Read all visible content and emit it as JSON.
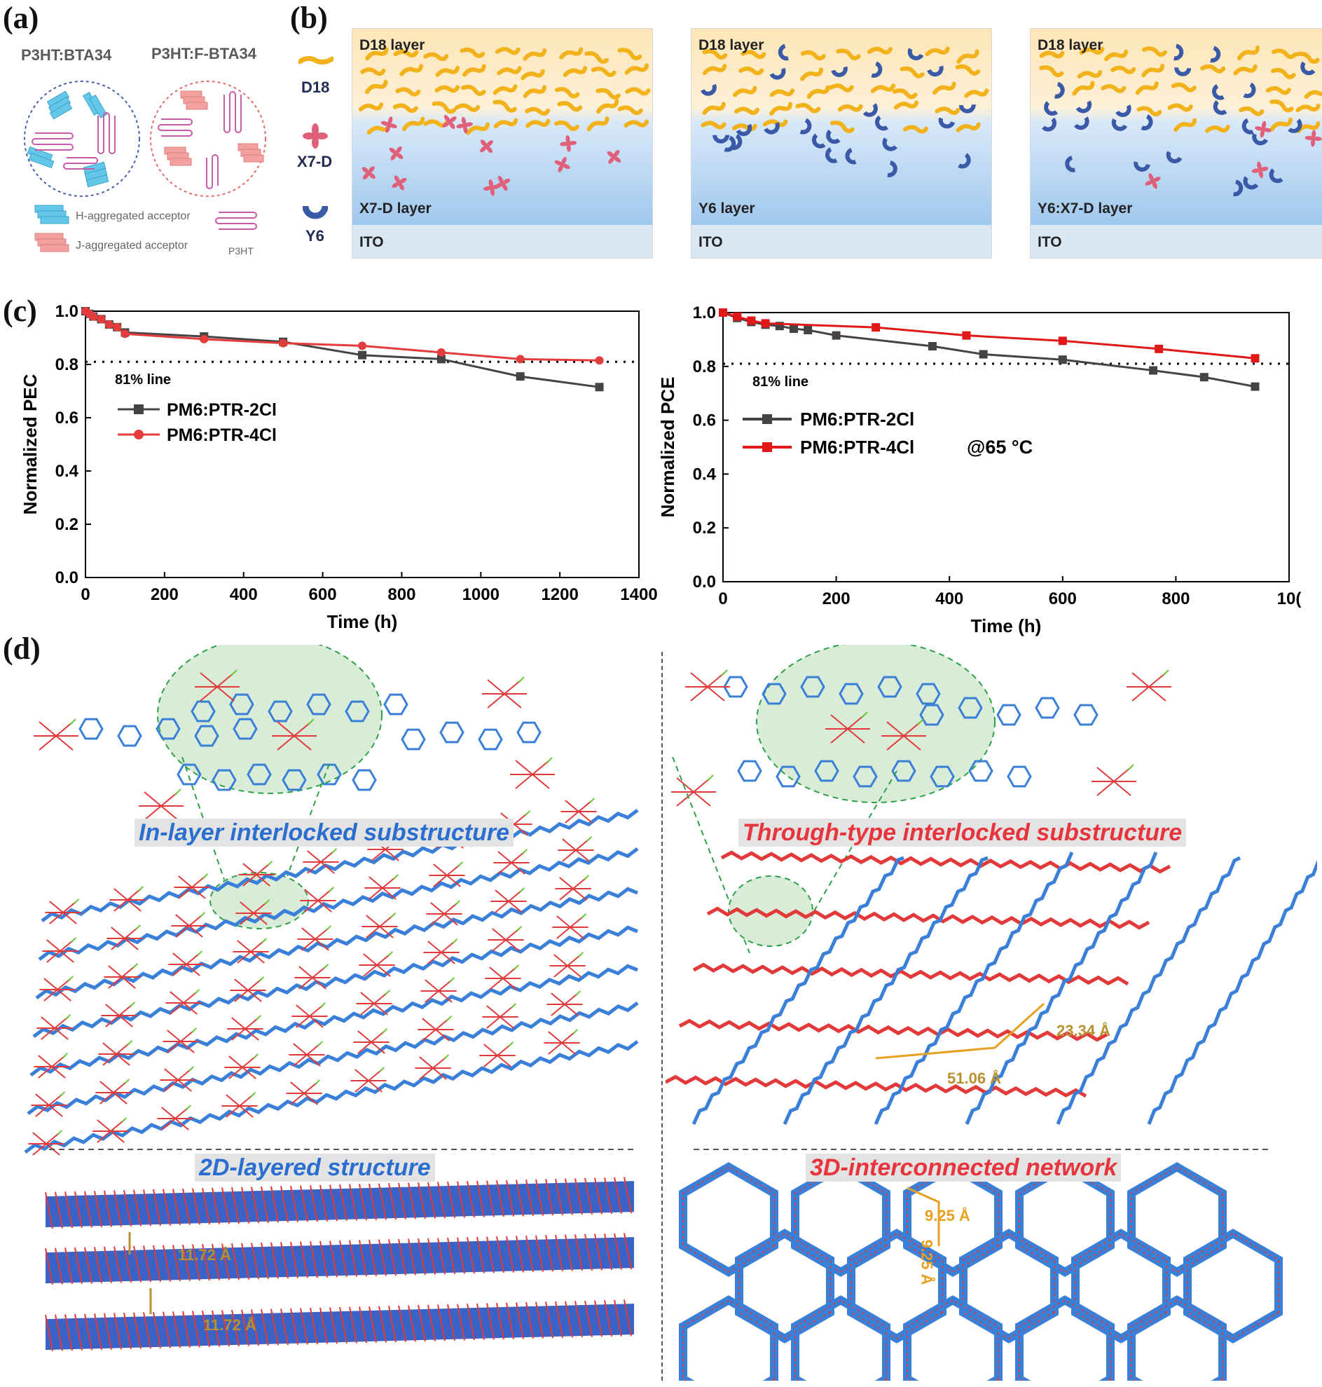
{
  "labels": {
    "a": "(a)",
    "b": "(b)",
    "c": "(c)",
    "d": "(d)"
  },
  "panel_a": {
    "title_left": "P3HT:BTA34",
    "title_right": "P3HT:F-BTA34",
    "legend_h": "H-aggregated acceptor",
    "legend_j": "J-aggregated acceptor",
    "legend_p": "P3HT"
  },
  "panel_b": {
    "legend": [
      "D18",
      "X7-D",
      "Y6"
    ],
    "panels": [
      {
        "top": "D18 layer",
        "bottom": "X7-D layer",
        "ito": "ITO"
      },
      {
        "top": "D18 layer",
        "bottom": "Y6 layer",
        "ito": "ITO"
      },
      {
        "top": "D18 layer",
        "bottom": "Y6:X7-D layer",
        "ito": "ITO"
      }
    ],
    "colors": {
      "d18": "#f2b21c",
      "x7d": "#e0607a",
      "y6": "#3a5aa8",
      "bg_top": "#fde9bd",
      "bg_bottom": "#a9cdef",
      "ito": "#d8e8f5"
    }
  },
  "chart_data": [
    {
      "type": "line",
      "xlabel": "Time (h)",
      "ylabel": "Normalized PEC",
      "xlim": [
        0,
        1400
      ],
      "ylim": [
        0,
        1.0
      ],
      "xticks": [
        "0",
        "200",
        "400",
        "600",
        "800",
        "1000",
        "1200",
        "1400"
      ],
      "yticks": [
        "0.0",
        "0.2",
        "0.4",
        "0.6",
        "0.8",
        "1.0"
      ],
      "reference_line": {
        "y": 0.81,
        "label": "81% line"
      },
      "series": [
        {
          "name": "PM6:PTR-2Cl",
          "color": "#444444",
          "marker": "square",
          "x": [
            0,
            10,
            20,
            40,
            60,
            80,
            100,
            300,
            500,
            700,
            900,
            1100,
            1300
          ],
          "y": [
            1.0,
            0.99,
            0.98,
            0.97,
            0.95,
            0.94,
            0.92,
            0.905,
            0.885,
            0.835,
            0.82,
            0.755,
            0.715
          ]
        },
        {
          "name": "PM6:PTR-4Cl",
          "color": "#e23c3c",
          "marker": "circle",
          "x": [
            0,
            10,
            20,
            40,
            60,
            80,
            100,
            300,
            500,
            700,
            900,
            1100,
            1300
          ],
          "y": [
            1.0,
            0.99,
            0.98,
            0.97,
            0.95,
            0.94,
            0.915,
            0.895,
            0.88,
            0.87,
            0.845,
            0.82,
            0.815
          ]
        }
      ]
    },
    {
      "type": "line",
      "xlabel": "Time (h)",
      "ylabel": "Normalized PCE",
      "xlim": [
        0,
        1000
      ],
      "ylim": [
        0,
        1.0
      ],
      "xticks": [
        "0",
        "200",
        "400",
        "600",
        "800",
        "10("
      ],
      "yticks": [
        "0.0",
        "0.2",
        "0.4",
        "0.6",
        "0.8",
        "1.0"
      ],
      "reference_line": {
        "y": 0.81,
        "label": "81% line"
      },
      "annotation": "@65 °C",
      "series": [
        {
          "name": "PM6:PTR-2Cl",
          "color": "#444444",
          "marker": "square",
          "x": [
            0,
            25,
            50,
            75,
            100,
            125,
            150,
            200,
            370,
            460,
            600,
            760,
            850,
            940
          ],
          "y": [
            1.0,
            0.98,
            0.965,
            0.955,
            0.95,
            0.94,
            0.935,
            0.915,
            0.875,
            0.845,
            0.825,
            0.785,
            0.76,
            0.725
          ]
        },
        {
          "name": "PM6:PTR-4Cl",
          "color": "#e01818",
          "marker": "square",
          "x": [
            0,
            25,
            50,
            75,
            270,
            430,
            600,
            770,
            940
          ],
          "y": [
            1.0,
            0.985,
            0.97,
            0.96,
            0.945,
            0.915,
            0.895,
            0.865,
            0.83
          ]
        }
      ]
    }
  ],
  "panel_d": {
    "left_banner": "In-layer interlocked substructure",
    "right_banner": "Through-type interlocked substructure",
    "left_struct": "2D-layered structure",
    "right_struct": "3D-interconnected network",
    "dim_23": "23.34 Å",
    "dim_51": "51.06 Å",
    "dim_1172a": "11.72 Å",
    "dim_1172b": "11.72 Å",
    "dim_925a": "9.25 Å",
    "dim_925b": "9.25 Å",
    "colors": {
      "core": "#3a7fd8",
      "end": "#e23a3a",
      "halogen": "#66cc33",
      "highlight": "#d8ecd8",
      "outline": "#2ea048",
      "dim": "#e8a020"
    }
  }
}
